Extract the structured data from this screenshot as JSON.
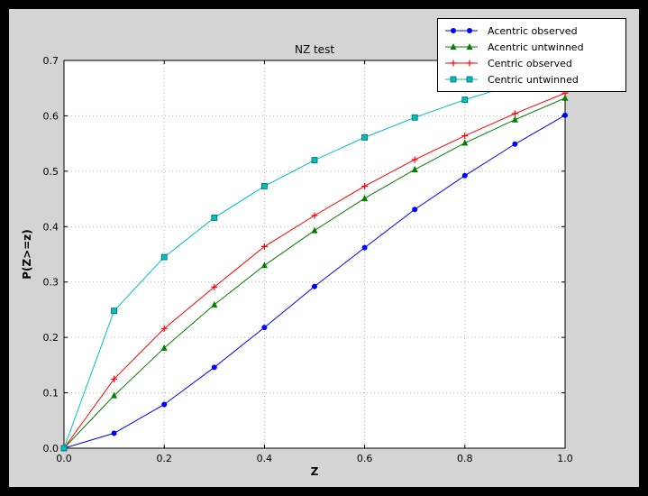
{
  "chart_data": {
    "type": "line",
    "title": "NZ test",
    "xlabel": "Z",
    "ylabel": "P(Z>=z)",
    "xlim": [
      0.0,
      1.0
    ],
    "ylim": [
      0.0,
      0.7
    ],
    "xticks": [
      0.0,
      0.2,
      0.4,
      0.6,
      0.8,
      1.0
    ],
    "yticks": [
      0.0,
      0.1,
      0.2,
      0.3,
      0.4,
      0.5,
      0.6,
      0.7
    ],
    "grid": "dotted",
    "legend_position": "upper right",
    "x": [
      0.0,
      0.1,
      0.2,
      0.3,
      0.4,
      0.5,
      0.6,
      0.7,
      0.8,
      0.9,
      1.0
    ],
    "series": [
      {
        "name": "Acentric observed",
        "color": "#0000ff",
        "marker": "circle",
        "values": [
          0.0,
          0.027,
          0.079,
          0.146,
          0.218,
          0.292,
          0.362,
          0.431,
          0.492,
          0.549,
          0.601
        ]
      },
      {
        "name": "Acentric untwinned",
        "color": "#007f00",
        "marker": "triangle",
        "values": [
          0.0,
          0.095,
          0.181,
          0.259,
          0.33,
          0.393,
          0.451,
          0.503,
          0.551,
          0.593,
          0.632
        ]
      },
      {
        "name": "Centric observed",
        "color": "#ff0000",
        "marker": "plus",
        "values": [
          0.0,
          0.125,
          0.216,
          0.291,
          0.364,
          0.42,
          0.473,
          0.521,
          0.564,
          0.604,
          0.641
        ]
      },
      {
        "name": "Centric untwinned",
        "color": "#00bfbf",
        "marker": "square",
        "values": [
          0.0,
          0.248,
          0.345,
          0.416,
          0.473,
          0.52,
          0.561,
          0.597,
          0.629,
          0.657,
          0.683
        ]
      }
    ],
    "colors": {
      "frame": "#000000",
      "figure_bg": "#d4d4d4",
      "plot_bg": "#ffffff",
      "grid": "#b3b3b3",
      "spine": "#000000",
      "text": "#000000"
    }
  }
}
